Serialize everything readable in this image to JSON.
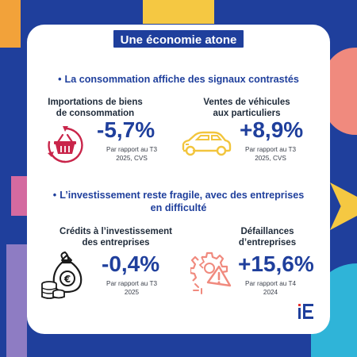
{
  "title": "Une économie atone",
  "sections": [
    {
      "heading": "La consommation affiche des signaux contrastés",
      "metrics": [
        {
          "label_line1": "Importations de biens",
          "label_line2": "de consommation",
          "value": "-5,7%",
          "note_line1": "Par rapport au T3",
          "note_line2": "2025, CVS",
          "icon": "shopping-basket-icon"
        },
        {
          "label_line1": "Ventes de véhicules",
          "label_line2": "aux particuliers",
          "value": "+8,9%",
          "note_line1": "Par rapport au T3",
          "note_line2": "2025, CVS",
          "icon": "car-icon"
        }
      ]
    },
    {
      "heading_line1": "L’investissement reste fragile, avec des entreprises",
      "heading_line2": "en difficulté",
      "metrics": [
        {
          "label_line1": "Crédits à l’investissement",
          "label_line2": "des entreprises",
          "value": "-0,4%",
          "note_line1": "Par rapport au T3",
          "note_line2": "2025",
          "icon": "money-bag-coins-icon"
        },
        {
          "label_line1": "Défaillances",
          "label_line2": "d’entreprises",
          "value": "+15,6%",
          "note_line1": "Par rapport au T4",
          "note_line2": "2024",
          "icon": "broken-gear-warning-icon"
        }
      ]
    }
  ],
  "logo_text": "iE",
  "colors": {
    "background": "#1f3f9c",
    "accent_blue": "#1f3f9c",
    "basket_red": "#c9254a",
    "car_yellow": "#f2c53d",
    "bag_black": "#1a1a1a",
    "gear_salmon": "#f08a7e",
    "logo_red": "#e8322e"
  }
}
